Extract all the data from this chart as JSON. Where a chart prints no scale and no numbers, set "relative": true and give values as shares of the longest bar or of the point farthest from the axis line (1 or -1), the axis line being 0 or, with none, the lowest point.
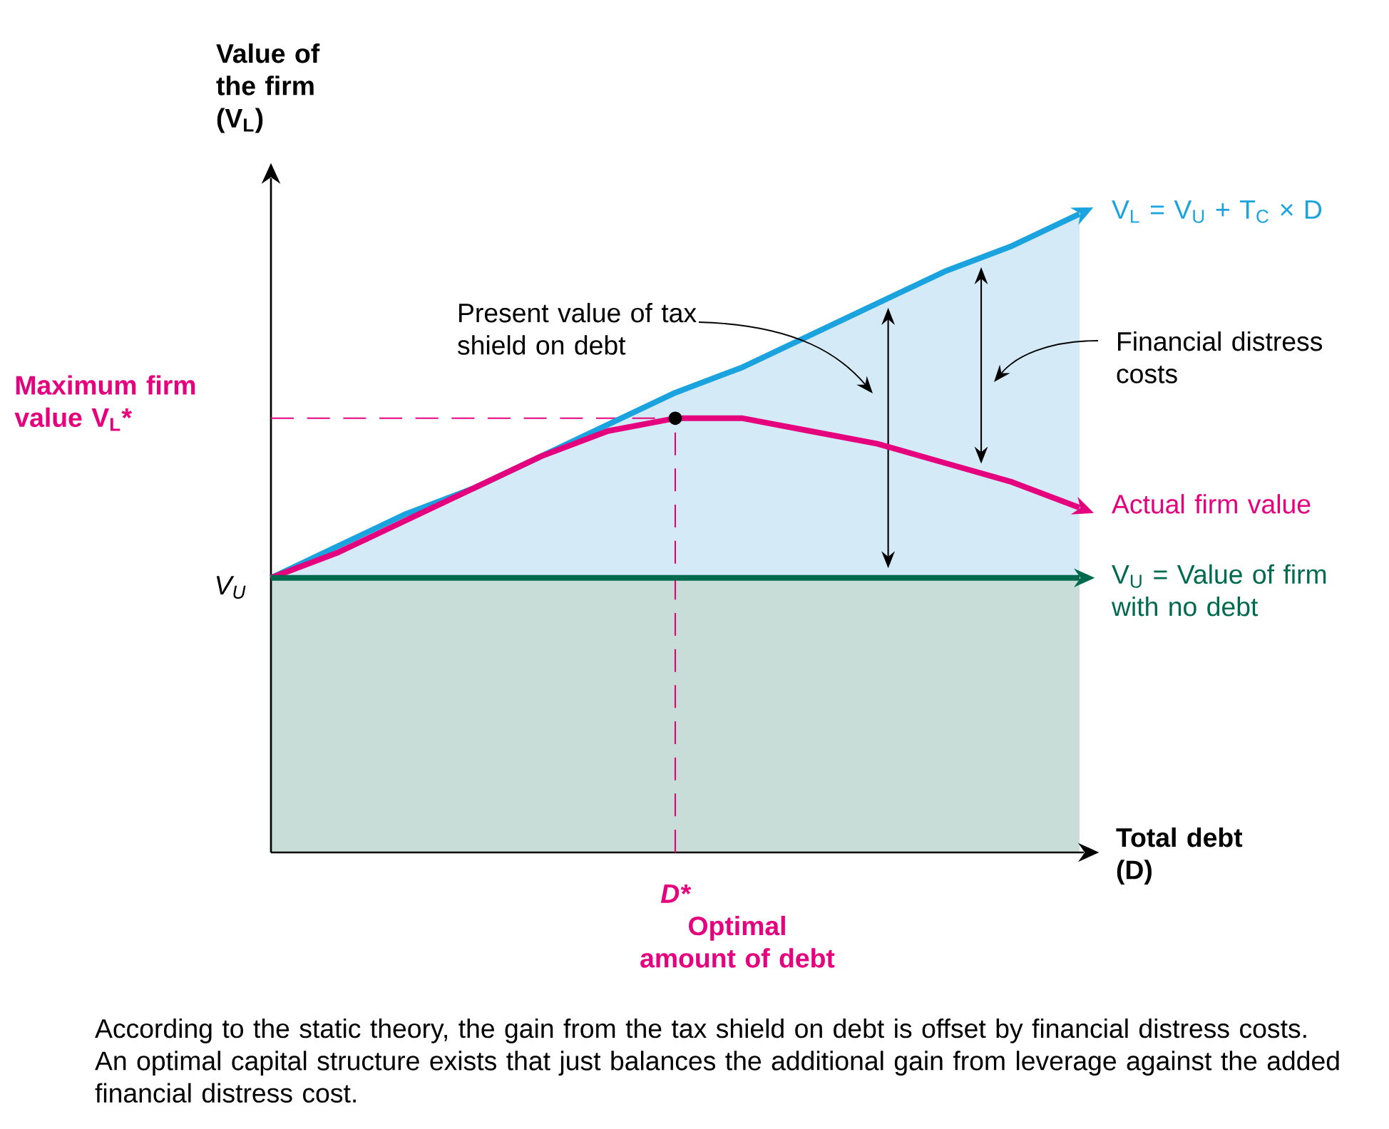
{
  "chart_data": {
    "type": "line",
    "relative": true,
    "legend": "right",
    "xlabel": "Total debt (D)",
    "ylabel": "Value of the firm (V$_{L}$)",
    "categories": [
      null,
      null,
      null,
      null,
      null,
      null,
      null,
      null,
      null,
      null,
      null,
      null,
      null
    ],
    "series": [
      {
        "name": "V$_{L}$ = V$_{U}$ + T$_{C}$ × D",
        "color": "#1aa3df",
        "values": [
          0.43,
          0.48,
          0.53,
          0.57,
          0.62,
          0.67,
          0.72,
          0.76,
          0.81,
          0.86,
          0.91,
          0.95,
          1
        ]
      },
      {
        "name": "Actual firm value",
        "color": "#e5007e",
        "values": [
          0.43,
          0.47,
          0.52,
          0.57,
          0.62,
          0.66,
          0.68,
          0.68,
          0.66,
          0.64,
          0.61,
          0.58,
          0.54
        ]
      },
      {
        "name": "V$_{U}$ = Value of firm with no debt",
        "color": "#006a4e",
        "values": [
          0.43,
          0.43,
          0.43,
          0.43,
          0.43,
          0.43,
          0.43,
          0.43,
          0.43,
          0.43,
          0.43,
          0.43,
          0.43
        ]
      }
    ],
    "ref_lines": [
      {
        "axis": "y",
        "value": 0.68,
        "label": "Maximum firm value V$_{L}$*",
        "color": "#e5007e",
        "line_style": "dashed"
      }
    ],
    "annotations": [
      "V$_{U}$",
      "D*",
      "Present value of tax shield on debt",
      "Financial distress costs",
      "Optimal amount of debt",
      "According to the static theory, the gain from the tax shield on debt is offset by financial distress costs. An optimal capital structure exists that just balances the additional gain from leverage against the added financial distress cost."
    ]
  }
}
